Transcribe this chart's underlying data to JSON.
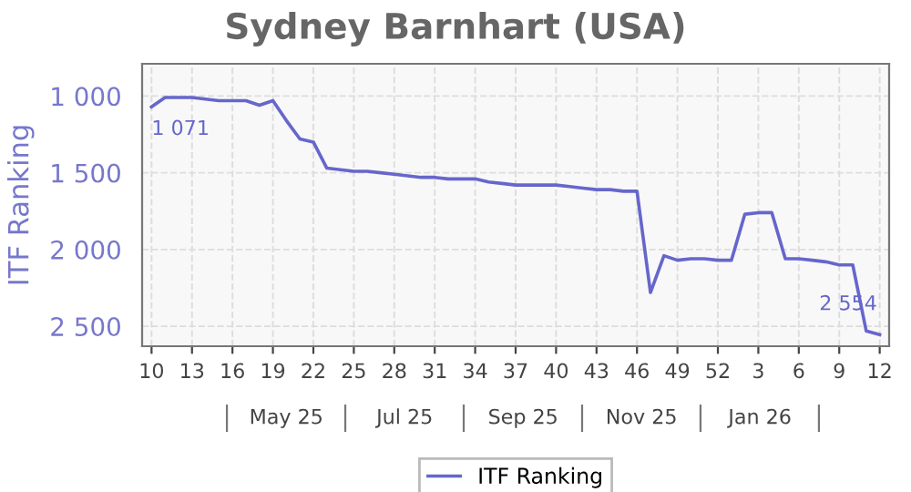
{
  "chart_data": {
    "type": "line",
    "title": "Sydney Barnhart (USA)",
    "ylabel": "ITF Ranking",
    "categories": [
      "10",
      null,
      null,
      "13",
      null,
      null,
      "16",
      null,
      null,
      "19",
      null,
      null,
      "22",
      null,
      null,
      "25",
      null,
      null,
      "28",
      null,
      null,
      "31",
      null,
      null,
      "34",
      null,
      null,
      "37",
      null,
      null,
      "40",
      null,
      null,
      "43",
      null,
      null,
      "46",
      null,
      null,
      "49",
      null,
      null,
      "52",
      null,
      null,
      "3",
      null,
      null,
      "6",
      null,
      null,
      "9",
      null,
      null,
      "12"
    ],
    "series": [
      {
        "name": "ITF Ranking",
        "color": "#6666cc",
        "values": [
          1071,
          1010,
          1010,
          1010,
          1020,
          1030,
          1030,
          1030,
          1060,
          1030,
          1160,
          1280,
          1300,
          1470,
          1480,
          1490,
          1490,
          1500,
          1510,
          1520,
          1530,
          1530,
          1540,
          1540,
          1540,
          1560,
          1570,
          1580,
          1580,
          1580,
          1580,
          1590,
          1600,
          1610,
          1610,
          1620,
          1620,
          2280,
          2040,
          2070,
          2060,
          2060,
          2070,
          2070,
          1770,
          1760,
          1760,
          2060,
          2060,
          2070,
          2080,
          2100,
          2100,
          2530,
          2554
        ]
      }
    ],
    "ylim": [
      2630,
      790
    ],
    "yticks": [
      {
        "value": 1000,
        "label": "1 000"
      },
      {
        "value": 1500,
        "label": "1 500"
      },
      {
        "value": 2000,
        "label": "2 000"
      },
      {
        "value": 2500,
        "label": "2 500"
      }
    ],
    "annotations": [
      {
        "text": "1 071",
        "x": "10",
        "y": 1071
      },
      {
        "text": "2 554",
        "x": "12",
        "y": 2554
      },
      "May 25",
      "Jul 25",
      "Sep 25",
      "Nov 25",
      "Jan 26"
    ],
    "grid": true,
    "legend": "bottom",
    "marker": "none",
    "line_style": "solid"
  }
}
